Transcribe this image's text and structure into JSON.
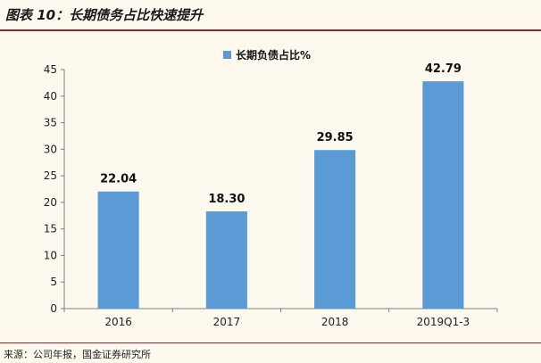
{
  "figure": {
    "title": "图表 10：长期债务占比快速提升",
    "source": "来源：公司年报，国金证券研究所"
  },
  "colors": {
    "bar": "#5b9bd5",
    "rule": "#8e2a2a",
    "background": "#fdf9ef"
  },
  "chart_data": {
    "type": "bar",
    "categories": [
      "2016",
      "2017",
      "2018",
      "2019Q1-3"
    ],
    "series": [
      {
        "name": "长期负债占比%",
        "values": [
          22.04,
          18.3,
          29.85,
          42.79
        ]
      }
    ],
    "data_labels": [
      "22.04",
      "18.30",
      "29.85",
      "42.79"
    ],
    "y_ticks": [
      0,
      5,
      10,
      15,
      20,
      25,
      30,
      35,
      40,
      45
    ],
    "ylim": [
      0,
      45
    ],
    "legend_position": "top-center",
    "grid": false
  }
}
